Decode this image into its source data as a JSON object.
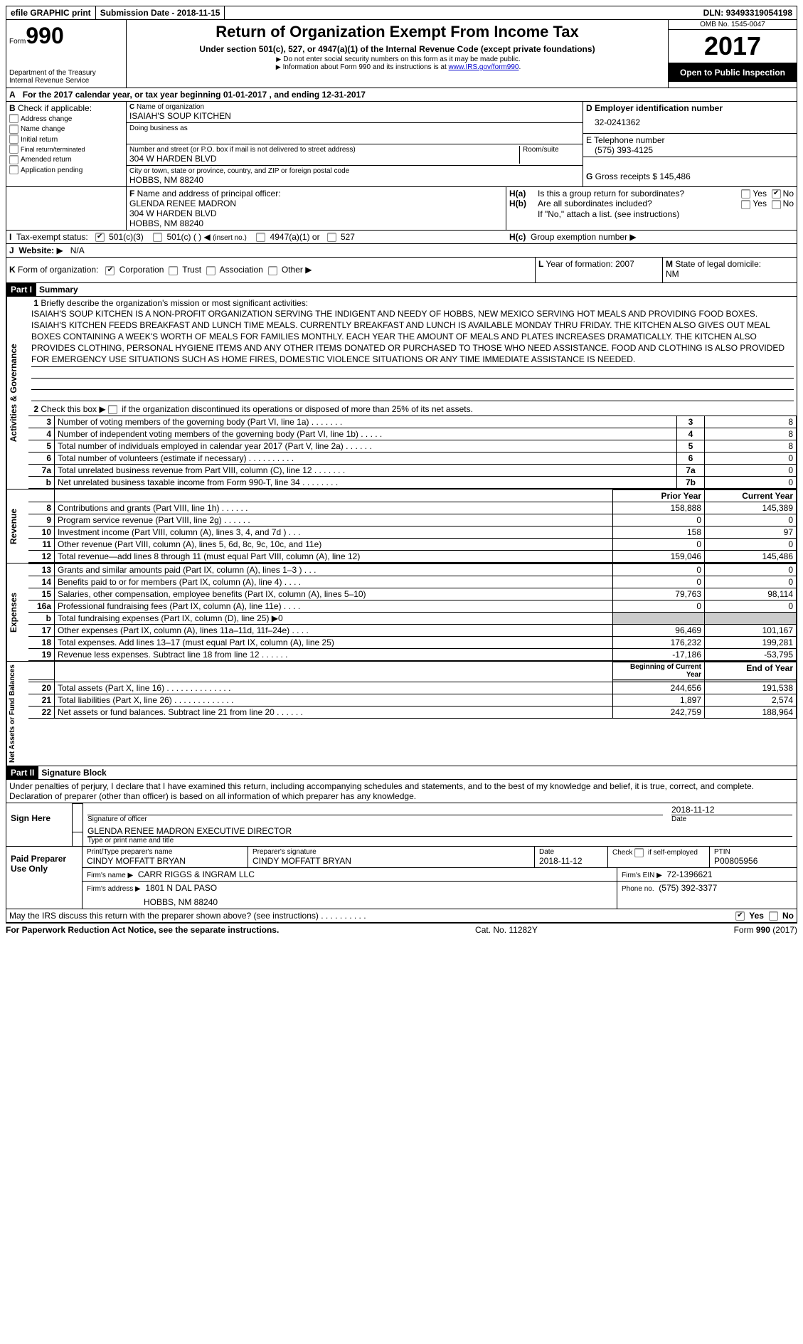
{
  "topbar": {
    "efile": "efile GRAPHIC print",
    "sub_label": "Submission Date - ",
    "sub_date": "2018-11-15",
    "dln_label": "DLN: ",
    "dln": "93493319054198"
  },
  "header": {
    "form_word": "Form",
    "form_num": "990",
    "dept1": "Department of the Treasury",
    "dept2": "Internal Revenue Service",
    "title": "Return of Organization Exempt From Income Tax",
    "sub1": "Under section 501(c), 527, or 4947(a)(1) of the Internal Revenue Code (except private foundations)",
    "sub2": "Do not enter social security numbers on this form as it may be made public.",
    "sub3_a": "Information about Form 990 and its instructions is at ",
    "sub3_link": "www.IRS.gov/form990",
    "omb": "OMB No. 1545-0047",
    "year": "2017",
    "open": "Open to Public Inspection"
  },
  "A": {
    "text_a": "For the 2017 calendar year, or tax year beginning ",
    "begin": "01-01-2017",
    "text_b": " , and ending ",
    "end": "12-31-2017"
  },
  "B": {
    "label": "Check if applicable:",
    "opts": [
      "Address change",
      "Name change",
      "Initial return",
      "Final return/terminated",
      "Amended return",
      "Application pending"
    ]
  },
  "C": {
    "name_label": "Name of organization",
    "name": "ISAIAH'S SOUP KITCHEN",
    "dba_label": "Doing business as",
    "addr_label": "Number and street (or P.O. box if mail is not delivered to street address)",
    "room_label": "Room/suite",
    "addr": "304 W HARDEN BLVD",
    "city_label": "City or town, state or province, country, and ZIP or foreign postal code",
    "city": "HOBBS, NM  88240"
  },
  "D": {
    "label": "Employer identification number",
    "val": "32-0241362"
  },
  "E": {
    "label": "E Telephone number",
    "val": "(575) 393-4125"
  },
  "G": {
    "label": "Gross receipts $",
    "val": "145,486"
  },
  "F": {
    "label": "Name and address of principal officer:",
    "l1": "GLENDA RENEE MADRON",
    "l2": "304 W HARDEN BLVD",
    "l3": "HOBBS, NM  88240"
  },
  "H": {
    "a": "Is this a group return for subordinates?",
    "b": "Are all subordinates included?",
    "note": "If \"No,\" attach a list. (see instructions)",
    "c": "Group exemption number",
    "yes": "Yes",
    "no": "No"
  },
  "I": {
    "label": "Tax-exempt status:",
    "o1": "501(c)(3)",
    "o2": "501(c) (   )",
    "o2b": "(insert no.)",
    "o3": "4947(a)(1) or",
    "o4": "527"
  },
  "J": {
    "label": "Website:",
    "val": "N/A"
  },
  "K": {
    "label": "Form of organization:",
    "opts": [
      "Corporation",
      "Trust",
      "Association",
      "Other"
    ]
  },
  "L": {
    "label": "Year of formation:",
    "val": "2007"
  },
  "M": {
    "label": "State of legal domicile:",
    "val": "NM"
  },
  "partI": {
    "part": "Part I",
    "title": "Summary"
  },
  "mission_label": "Briefly describe the organization's mission or most significant activities:",
  "mission": "ISAIAH'S SOUP KITCHEN IS A NON-PROFIT ORGANIZATION SERVING THE INDIGENT AND NEEDY OF HOBBS, NEW MEXICO SERVING HOT MEALS AND PROVIDING FOOD BOXES. ISAIAH'S KITCHEN FEEDS BREAKFAST AND LUNCH TIME MEALS. CURRENTLY BREAKFAST AND LUNCH IS AVAILABLE MONDAY THRU FRIDAY. THE KITCHEN ALSO GIVES OUT MEAL BOXES CONTAINING A WEEK'S WORTH OF MEALS FOR FAMILIES MONTHLY. EACH YEAR THE AMOUNT OF MEALS AND PLATES INCREASES DRAMATICALLY. THE KITCHEN ALSO PROVIDES CLOTHING, PERSONAL HYGIENE ITEMS AND ANY OTHER ITEMS DONATED OR PURCHASED TO THOSE WHO NEED ASSISTANCE. FOOD AND CLOTHING IS ALSO PROVIDED FOR EMERGENCY USE SITUATIONS SUCH AS HOME FIRES, DOMESTIC VIOLENCE SITUATIONS OR ANY TIME IMMEDIATE ASSISTANCE IS NEEDED.",
  "line2": "Check this box ▶     if the organization discontinued its operations or disposed of more than 25% of its net assets.",
  "side_labels": {
    "ag": "Activities & Governance",
    "rev": "Revenue",
    "exp": "Expenses",
    "na": "Net Assets or Fund Balances"
  },
  "gov_rows": [
    {
      "n": "3",
      "d": "Number of voting members of the governing body (Part VI, line 1a)   .   .   .   .   .   .   .",
      "c": "3",
      "v": "8"
    },
    {
      "n": "4",
      "d": "Number of independent voting members of the governing body (Part VI, line 1b)    .   .   .   .   .",
      "c": "4",
      "v": "8"
    },
    {
      "n": "5",
      "d": "Total number of individuals employed in calendar year 2017 (Part V, line 2a)   .   .   .   .   .   .",
      "c": "5",
      "v": "8"
    },
    {
      "n": "6",
      "d": "Total number of volunteers (estimate if necessary)   .   .   .   .   .   .   .   .   .   .",
      "c": "6",
      "v": "0"
    },
    {
      "n": "7a",
      "d": "Total unrelated business revenue from Part VIII, column (C), line 12   .   .   .   .   .   .   .",
      "c": "7a",
      "v": "0"
    },
    {
      "n": "b",
      "d": "Net unrelated business taxable income from Form 990-T, line 34    .   .   .   .   .   .   .   .",
      "c": "7b",
      "v": "0"
    }
  ],
  "col_hdr": {
    "prior": "Prior Year",
    "curr": "Current Year",
    "boy": "Beginning of Current Year",
    "eoy": "End of Year"
  },
  "rev_rows": [
    {
      "n": "8",
      "d": "Contributions and grants (Part VIII, line 1h)   .   .   .   .   .   .",
      "p": "158,888",
      "c": "145,389"
    },
    {
      "n": "9",
      "d": "Program service revenue (Part VIII, line 2g)   .   .   .   .   .   .",
      "p": "0",
      "c": "0"
    },
    {
      "n": "10",
      "d": "Investment income (Part VIII, column (A), lines 3, 4, and 7d )   .   .   .",
      "p": "158",
      "c": "97"
    },
    {
      "n": "11",
      "d": "Other revenue (Part VIII, column (A), lines 5, 6d, 8c, 9c, 10c, and 11e)",
      "p": "0",
      "c": "0"
    },
    {
      "n": "12",
      "d": "Total revenue—add lines 8 through 11 (must equal Part VIII, column (A), line 12)",
      "p": "159,046",
      "c": "145,486"
    }
  ],
  "exp_rows": [
    {
      "n": "13",
      "d": "Grants and similar amounts paid (Part IX, column (A), lines 1–3 )   .   .   .",
      "p": "0",
      "c": "0"
    },
    {
      "n": "14",
      "d": "Benefits paid to or for members (Part IX, column (A), line 4)   .   .   .   .",
      "p": "0",
      "c": "0"
    },
    {
      "n": "15",
      "d": "Salaries, other compensation, employee benefits (Part IX, column (A), lines 5–10)",
      "p": "79,763",
      "c": "98,114"
    },
    {
      "n": "16a",
      "d": "Professional fundraising fees (Part IX, column (A), line 11e)   .   .   .   .",
      "p": "0",
      "c": "0"
    },
    {
      "n": "b",
      "d": "Total fundraising expenses (Part IX, column (D), line 25) ▶0",
      "p": "SHADE",
      "c": "SHADE"
    },
    {
      "n": "17",
      "d": "Other expenses (Part IX, column (A), lines 11a–11d, 11f–24e)   .   .   .   .",
      "p": "96,469",
      "c": "101,167"
    },
    {
      "n": "18",
      "d": "Total expenses. Add lines 13–17 (must equal Part IX, column (A), line 25)",
      "p": "176,232",
      "c": "199,281"
    },
    {
      "n": "19",
      "d": "Revenue less expenses. Subtract line 18 from line 12   .   .   .   .   .   .",
      "p": "-17,186",
      "c": "-53,795"
    }
  ],
  "na_rows": [
    {
      "n": "20",
      "d": "Total assets (Part X, line 16)  .   .   .   .   .   .   .   .   .   .   .   .   .   .",
      "p": "244,656",
      "c": "191,538"
    },
    {
      "n": "21",
      "d": "Total liabilities (Part X, line 26)  .   .   .   .   .   .   .   .   .   .   .   .   .",
      "p": "1,897",
      "c": "2,574"
    },
    {
      "n": "22",
      "d": "Net assets or fund balances. Subtract line 21 from line 20   .   .   .   .   .   .",
      "p": "242,759",
      "c": "188,964"
    }
  ],
  "partII": {
    "part": "Part II",
    "title": "Signature Block"
  },
  "perjury": "Under penalties of perjury, I declare that I have examined this return, including accompanying schedules and statements, and to the best of my knowledge and belief, it is true, correct, and complete. Declaration of preparer (other than officer) is based on all information of which preparer has any knowledge.",
  "sign": {
    "here": "Sign Here",
    "sig_label": "Signature of officer",
    "date_label": "Date",
    "date": "2018-11-12",
    "name": "GLENDA RENEE MADRON  EXECUTIVE DIRECTOR",
    "name_label": "Type or print name and title"
  },
  "preparer": {
    "here": "Paid Preparer Use Only",
    "name_label": "Print/Type preparer's name",
    "name": "CINDY MOFFATT BRYAN",
    "sig_label": "Preparer's signature",
    "sig": "CINDY MOFFATT BRYAN",
    "date_label": "Date",
    "date": "2018-11-12",
    "check_label": "Check        if self-employed",
    "ptin_label": "PTIN",
    "ptin": "P00805956",
    "firm_name_label": "Firm's name    ▶",
    "firm_name": "CARR RIGGS & INGRAM LLC",
    "firm_ein_label": "Firm's EIN ▶",
    "firm_ein": "72-1396621",
    "firm_addr_label": "Firm's address ▶",
    "firm_addr1": "1801 N DAL PASO",
    "firm_addr2": "HOBBS, NM  88240",
    "phone_label": "Phone no.",
    "phone": "(575) 392-3377"
  },
  "discuss": {
    "q": "May the IRS discuss this return with the preparer shown above? (see instructions)    .   .   .   .   .   .   .   .   .   .",
    "yes": "Yes",
    "no": "No"
  },
  "footer": {
    "left": "For Paperwork Reduction Act Notice, see the separate instructions.",
    "mid": "Cat. No. 11282Y",
    "right": "Form 990 (2017)"
  }
}
